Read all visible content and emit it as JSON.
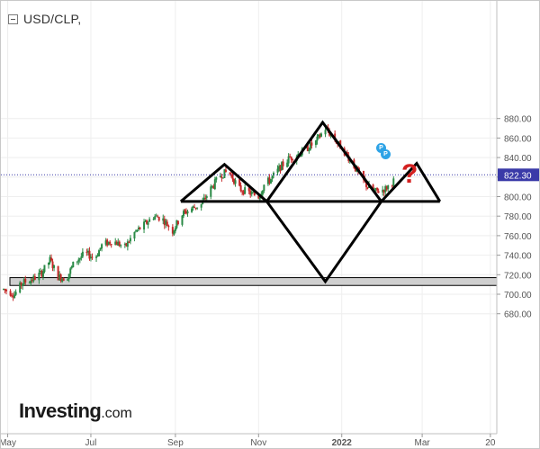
{
  "header": {
    "title": "USD/CLP,"
  },
  "logo": {
    "main": "Investing",
    "suffix": ".com"
  },
  "annotation": {
    "question_mark": "?",
    "marker_label": "P"
  },
  "chart_data": {
    "type": "candlestick",
    "symbol": "USD/CLP",
    "xlabel": "",
    "ylabel": "",
    "x_range": [
      "2021-04-28",
      "2022-04-30"
    ],
    "ylim": [
      680,
      900
    ],
    "x_ticks": [
      {
        "label": "May",
        "date": "2021-05-01"
      },
      {
        "label": "Jul",
        "date": "2021-07-01"
      },
      {
        "label": "Sep",
        "date": "2021-09-01"
      },
      {
        "label": "Nov",
        "date": "2021-11-01"
      },
      {
        "label": "2022",
        "date": "2022-01-01"
      },
      {
        "label": "Mar",
        "date": "2022-03-01"
      },
      {
        "label": "20",
        "date": "2022-04-20"
      }
    ],
    "y_ticks": [
      680,
      700,
      720,
      740,
      760,
      780,
      800,
      820,
      840,
      860,
      880
    ],
    "current_price": {
      "value": 822.3,
      "label": "822.30"
    },
    "price_path": [
      [
        "2021-04-28",
        705
      ],
      [
        "2021-05-06",
        700
      ],
      [
        "2021-05-12",
        712
      ],
      [
        "2021-05-19",
        715
      ],
      [
        "2021-05-26",
        722
      ],
      [
        "2021-06-01",
        735
      ],
      [
        "2021-06-07",
        718
      ],
      [
        "2021-06-13",
        716
      ],
      [
        "2021-06-19",
        733
      ],
      [
        "2021-06-27",
        742
      ],
      [
        "2021-07-04",
        737
      ],
      [
        "2021-07-09",
        750
      ],
      [
        "2021-07-17",
        755
      ],
      [
        "2021-07-26",
        748
      ],
      [
        "2021-08-02",
        763
      ],
      [
        "2021-08-10",
        772
      ],
      [
        "2021-08-16",
        780
      ],
      [
        "2021-08-22",
        778
      ],
      [
        "2021-08-30",
        765
      ],
      [
        "2021-09-06",
        782
      ],
      [
        "2021-09-13",
        788
      ],
      [
        "2021-09-20",
        792
      ],
      [
        "2021-09-27",
        808
      ],
      [
        "2021-10-04",
        822
      ],
      [
        "2021-10-10",
        826
      ],
      [
        "2021-10-18",
        808
      ],
      [
        "2021-10-25",
        804
      ],
      [
        "2021-11-01",
        800
      ],
      [
        "2021-11-05",
        812
      ],
      [
        "2021-11-10",
        818
      ],
      [
        "2021-11-17",
        830
      ],
      [
        "2021-11-24",
        840
      ],
      [
        "2021-12-01",
        844
      ],
      [
        "2021-12-07",
        850
      ],
      [
        "2021-12-13",
        856
      ],
      [
        "2021-12-18",
        866
      ],
      [
        "2021-12-20",
        870
      ],
      [
        "2021-12-26",
        860
      ],
      [
        "2022-01-02",
        848
      ],
      [
        "2022-01-08",
        836
      ],
      [
        "2022-01-14",
        822
      ],
      [
        "2022-01-20",
        810
      ],
      [
        "2022-01-26",
        805
      ],
      [
        "2022-02-02",
        808
      ],
      [
        "2022-02-08",
        816
      ]
    ],
    "support_zone": {
      "from": 709,
      "to": 717
    },
    "pattern_lines": [
      {
        "name": "neckline",
        "points": [
          [
            "2021-09-05",
            795
          ],
          [
            "2022-03-14",
            795
          ]
        ]
      },
      {
        "name": "left-shoulder",
        "points": [
          [
            "2021-09-05",
            795
          ],
          [
            "2021-10-07",
            833
          ],
          [
            "2021-11-07",
            795
          ]
        ]
      },
      {
        "name": "head",
        "points": [
          [
            "2021-11-07",
            795
          ],
          [
            "2021-12-18",
            876
          ],
          [
            "2022-01-30",
            795
          ]
        ]
      },
      {
        "name": "projected-shoulder",
        "points": [
          [
            "2022-01-30",
            795
          ],
          [
            "2022-02-25",
            834
          ],
          [
            "2022-03-14",
            795
          ]
        ]
      },
      {
        "name": "inverted-projection",
        "points": [
          [
            "2021-11-07",
            795
          ],
          [
            "2021-12-20",
            713
          ],
          [
            "2022-01-30",
            795
          ]
        ]
      }
    ],
    "legend": "none",
    "grid": true,
    "colors": {
      "up": "#2a8a46",
      "down": "#c62828",
      "pattern": "#000000",
      "zone_fill": "#cfcfcf",
      "price_line": "#3a3aa8",
      "axis_text": "#555555",
      "grid": "#eeeeee"
    }
  }
}
